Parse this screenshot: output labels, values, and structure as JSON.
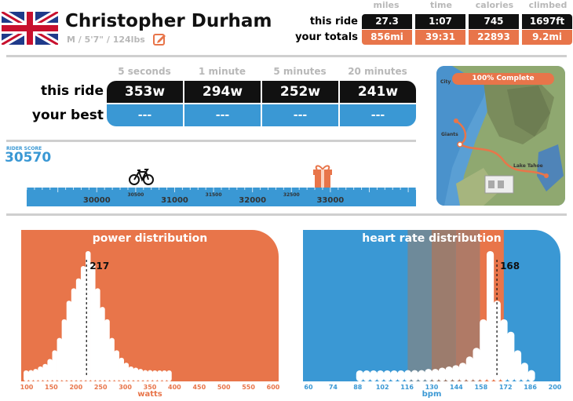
{
  "colors": {
    "orange": "#e8754a",
    "blue": "#3a98d4",
    "black": "#111111",
    "label_gray": "#b8b8b8"
  },
  "profile": {
    "name": "Christopher Durham",
    "details": "M / 5'7\" / 124lbs",
    "flag": "uk-flag",
    "edit_icon": "edit-icon"
  },
  "summary": {
    "headers": [
      "miles",
      "time",
      "calories",
      "climbed"
    ],
    "this_ride_label": "this ride",
    "your_totals_label": "your totals",
    "this_ride": [
      "27.3",
      "1:07",
      "745",
      "1697ft"
    ],
    "totals": [
      "856mi",
      "39:31",
      "22893",
      "9.2mi"
    ]
  },
  "power_best": {
    "headers": [
      "5 seconds",
      "1 minute",
      "5 minutes",
      "20 minutes"
    ],
    "this_ride_label": "this ride",
    "your_best_label": "your best",
    "this_ride": [
      "353w",
      "294w",
      "252w",
      "241w"
    ],
    "best": [
      "---",
      "---",
      "---",
      "---"
    ]
  },
  "map": {
    "progress_label": "100% Complete",
    "places": [
      "City",
      "Giants",
      "Lake Tahoe"
    ]
  },
  "rider_score": {
    "label": "RIDER SCORE",
    "value": "30570",
    "current": 30570,
    "next_gift": 32900,
    "min": 29100,
    "max": 34100,
    "major_ticks": [
      "30000",
      "31000",
      "32000",
      "33000"
    ],
    "minor_ticks": [
      "30500",
      "31500",
      "32500"
    ]
  },
  "chart_data": [
    {
      "type": "bar",
      "title": "power distribution",
      "xlabel": "watts",
      "ylabel": "",
      "x": [
        90,
        100,
        110,
        120,
        130,
        140,
        150,
        160,
        170,
        180,
        190,
        200,
        210,
        220,
        230,
        240,
        250,
        260,
        270,
        280,
        290,
        300,
        310,
        320,
        330,
        340,
        350,
        360,
        370,
        380,
        390
      ],
      "values": [
        3,
        4,
        5,
        7,
        9,
        13,
        20,
        30,
        45,
        60,
        70,
        78,
        88,
        100,
        90,
        70,
        55,
        45,
        30,
        20,
        14,
        10,
        7,
        6,
        5,
        4,
        4,
        3,
        3,
        2,
        2
      ],
      "marker": {
        "value": 217,
        "label": "217"
      },
      "tick_labels": [
        "100",
        "150",
        "200",
        "250",
        "300",
        "350",
        "400",
        "450",
        "500",
        "550",
        "600"
      ],
      "xlim": [
        80,
        620
      ]
    },
    {
      "type": "bar",
      "title": "heart rate distribution",
      "xlabel": "bpm",
      "ylabel": "",
      "x": [
        88,
        92,
        96,
        100,
        104,
        108,
        112,
        116,
        120,
        124,
        128,
        132,
        136,
        140,
        144,
        148,
        152,
        156,
        160,
        164,
        168,
        172,
        176,
        180,
        184,
        188
      ],
      "values": [
        2,
        2,
        2,
        2,
        3,
        3,
        3,
        4,
        4,
        4,
        5,
        5,
        6,
        7,
        8,
        10,
        15,
        22,
        45,
        100,
        60,
        45,
        35,
        20,
        10,
        4
      ],
      "marker": {
        "value": 168,
        "label": "168"
      },
      "tick_labels": [
        "60",
        "74",
        "88",
        "102",
        "116",
        "130",
        "144",
        "158",
        "172",
        "186",
        "200"
      ],
      "xlim": [
        55,
        205
      ],
      "zones": [
        {
          "from": 116,
          "to": 130,
          "color": "#6e8a9a"
        },
        {
          "from": 130,
          "to": 144,
          "color": "#9c7c6d"
        },
        {
          "from": 144,
          "to": 158,
          "color": "#b07a66"
        },
        {
          "from": 158,
          "to": 172,
          "color": "#e8754a"
        }
      ]
    }
  ]
}
